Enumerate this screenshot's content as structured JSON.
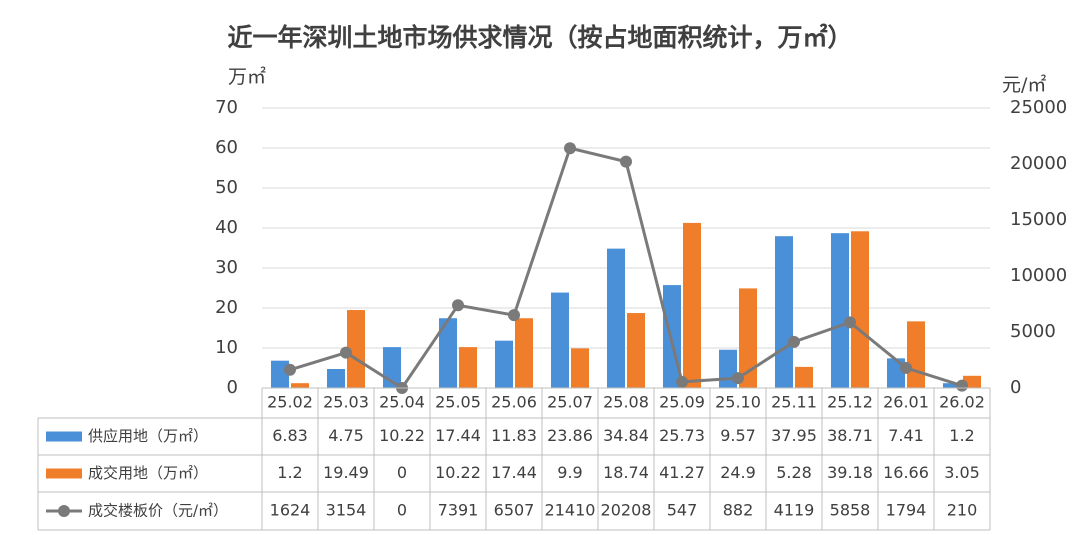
{
  "title": "近一年深圳土地市场供求情况（按占地面积统计，万㎡）",
  "chart_data": {
    "type": "bar",
    "title": "近一年深圳土地市场供求情况（按占地面积统计，万㎡）",
    "left_unit": "万㎡",
    "right_unit": "元/㎡",
    "left_axis": {
      "min": 0,
      "max": 70,
      "step": 10,
      "ticks": [
        "0",
        "10",
        "20",
        "30",
        "40",
        "50",
        "60",
        "70"
      ]
    },
    "right_axis": {
      "min": 0,
      "max": 25000,
      "step": 5000,
      "ticks": [
        "0",
        "5000",
        "10000",
        "15000",
        "20000",
        "25000"
      ]
    },
    "categories": [
      "25.02",
      "25.03",
      "25.04",
      "25.05",
      "25.06",
      "25.07",
      "25.08",
      "25.09",
      "25.10",
      "25.11",
      "25.12",
      "26.01",
      "26.02"
    ],
    "series": [
      {
        "name": "供应用地（万㎡）",
        "kind": "bar",
        "axis": "left",
        "color": "#4a90d9",
        "values": [
          6.83,
          4.75,
          10.22,
          17.44,
          11.83,
          23.86,
          34.84,
          25.73,
          9.57,
          37.95,
          38.71,
          7.41,
          1.2
        ],
        "labels": [
          "6.83",
          "4.75",
          "10.22",
          "17.44",
          "11.83",
          "23.86",
          "34.84",
          "25.73",
          "9.57",
          "37.95",
          "38.71",
          "7.41",
          "1.2"
        ]
      },
      {
        "name": "成交用地（万㎡）",
        "kind": "bar",
        "axis": "left",
        "color": "#f07d2a",
        "values": [
          1.2,
          19.49,
          0,
          10.22,
          17.44,
          9.9,
          18.74,
          41.27,
          24.9,
          5.28,
          39.18,
          16.66,
          3.05
        ],
        "labels": [
          "1.2",
          "19.49",
          "0",
          "10.22",
          "17.44",
          "9.9",
          "18.74",
          "41.27",
          "24.9",
          "5.28",
          "39.18",
          "16.66",
          "3.05"
        ]
      },
      {
        "name": "成交楼板价（元/㎡）",
        "kind": "line",
        "axis": "right",
        "color": "#7a7a7a",
        "values": [
          1624,
          3154,
          0,
          7391,
          6507,
          21410,
          20208,
          547,
          882,
          4119,
          5858,
          1794,
          210
        ],
        "labels": [
          "1624",
          "3154",
          "0",
          "7391",
          "6507",
          "21410",
          "20208",
          "547",
          "882",
          "4119",
          "5858",
          "1794",
          "210"
        ]
      }
    ],
    "grid": true,
    "legend": "data-table"
  }
}
